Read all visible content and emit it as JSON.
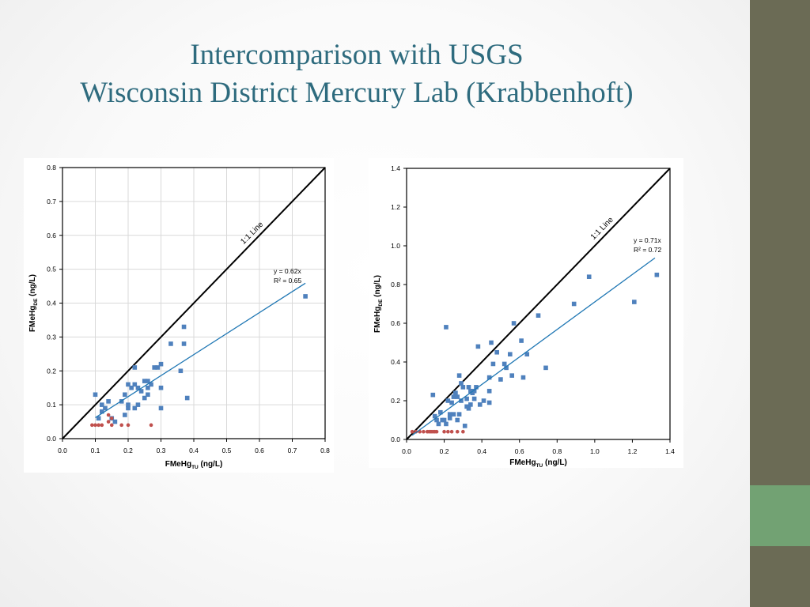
{
  "slide": {
    "title_line1": "Intercomparison with USGS",
    "title_line2": "Wisconsin District Mercury Lab (Krabbenhoft)",
    "colors": {
      "title": "#2e6b7e",
      "sidebar": "#6b6b55",
      "sidebar_accent": "#72a273",
      "series_blue": "#4f81bd",
      "series_red": "#c0504d",
      "trend_line": "#1f77b4",
      "one_to_one_line": "#000000"
    }
  },
  "chart_data": [
    {
      "type": "scatter",
      "xlabel": "FMeHg",
      "xlabel_sub": "TU",
      "xlabel_unit": " (ng/L)",
      "ylabel": "FMeHg",
      "ylabel_sub": "DE",
      "ylabel_unit": " (ng/L)",
      "xlim": [
        0,
        0.8
      ],
      "ylim": [
        0,
        0.8
      ],
      "xticks": [
        "0.0",
        "0.1",
        "0.2",
        "0.3",
        "0.4",
        "0.5",
        "0.6",
        "0.7",
        "0.8"
      ],
      "yticks": [
        "0.0",
        "0.1",
        "0.2",
        "0.3",
        "0.4",
        "0.5",
        "0.6",
        "0.7",
        "0.8"
      ],
      "grid": true,
      "one_to_one_label": "1:1 Line",
      "trend": {
        "slope": 0.62,
        "x_range": [
          0.1,
          0.74
        ],
        "equation": "y = 0.62x",
        "r2": "R² = 0.65"
      },
      "series": [
        {
          "marker": "square",
          "color": "#4f81bd",
          "points": [
            [
              0.1,
              0.13
            ],
            [
              0.11,
              0.06
            ],
            [
              0.12,
              0.1
            ],
            [
              0.12,
              0.08
            ],
            [
              0.13,
              0.09
            ],
            [
              0.14,
              0.11
            ],
            [
              0.15,
              0.06
            ],
            [
              0.16,
              0.05
            ],
            [
              0.18,
              0.11
            ],
            [
              0.19,
              0.07
            ],
            [
              0.19,
              0.13
            ],
            [
              0.2,
              0.16
            ],
            [
              0.2,
              0.09
            ],
            [
              0.2,
              0.1
            ],
            [
              0.21,
              0.15
            ],
            [
              0.22,
              0.16
            ],
            [
              0.22,
              0.21
            ],
            [
              0.22,
              0.09
            ],
            [
              0.23,
              0.1
            ],
            [
              0.23,
              0.15
            ],
            [
              0.24,
              0.14
            ],
            [
              0.25,
              0.12
            ],
            [
              0.25,
              0.17
            ],
            [
              0.26,
              0.13
            ],
            [
              0.26,
              0.15
            ],
            [
              0.26,
              0.17
            ],
            [
              0.27,
              0.16
            ],
            [
              0.28,
              0.21
            ],
            [
              0.29,
              0.21
            ],
            [
              0.3,
              0.22
            ],
            [
              0.3,
              0.15
            ],
            [
              0.3,
              0.09
            ],
            [
              0.33,
              0.28
            ],
            [
              0.36,
              0.2
            ],
            [
              0.37,
              0.28
            ],
            [
              0.37,
              0.33
            ],
            [
              0.38,
              0.12
            ],
            [
              0.74,
              0.42
            ]
          ]
        },
        {
          "marker": "circle",
          "color": "#c0504d",
          "points": [
            [
              0.09,
              0.04
            ],
            [
              0.1,
              0.04
            ],
            [
              0.11,
              0.04
            ],
            [
              0.12,
              0.04
            ],
            [
              0.14,
              0.05
            ],
            [
              0.14,
              0.07
            ],
            [
              0.15,
              0.06
            ],
            [
              0.15,
              0.04
            ],
            [
              0.18,
              0.04
            ],
            [
              0.2,
              0.04
            ],
            [
              0.27,
              0.04
            ]
          ]
        }
      ]
    },
    {
      "type": "scatter",
      "xlabel": "FMeHg",
      "xlabel_sub": "TU",
      "xlabel_unit": " (ng/L)",
      "ylabel": "FMeHg",
      "ylabel_sub": "DE",
      "ylabel_unit": " (ng/L)",
      "xlim": [
        0,
        1.4
      ],
      "ylim": [
        0,
        1.4
      ],
      "xticks": [
        "0.0",
        "0.2",
        "0.4",
        "0.6",
        "0.8",
        "1.0",
        "1.2",
        "1.4"
      ],
      "yticks": [
        "0.0",
        "0.2",
        "0.4",
        "0.6",
        "0.8",
        "1.0",
        "1.2",
        "1.4"
      ],
      "grid": false,
      "one_to_one_label": "1:1 Line",
      "trend": {
        "slope": 0.71,
        "x_range": [
          0.03,
          1.32
        ],
        "equation": "y = 0.71x",
        "r2": "R² = 0.72"
      },
      "series": [
        {
          "marker": "square",
          "color": "#4f81bd",
          "points": [
            [
              0.14,
              0.23
            ],
            [
              0.15,
              0.12
            ],
            [
              0.16,
              0.1
            ],
            [
              0.17,
              0.08
            ],
            [
              0.18,
              0.14
            ],
            [
              0.19,
              0.1
            ],
            [
              0.2,
              0.1
            ],
            [
              0.21,
              0.58
            ],
            [
              0.21,
              0.08
            ],
            [
              0.22,
              0.2
            ],
            [
              0.23,
              0.11
            ],
            [
              0.24,
              0.19
            ],
            [
              0.25,
              0.13
            ],
            [
              0.25,
              0.22
            ],
            [
              0.26,
              0.24
            ],
            [
              0.27,
              0.22
            ],
            [
              0.27,
              0.1
            ],
            [
              0.28,
              0.33
            ],
            [
              0.28,
              0.13
            ],
            [
              0.29,
              0.2
            ],
            [
              0.29,
              0.29
            ],
            [
              0.3,
              0.27
            ],
            [
              0.31,
              0.07
            ],
            [
              0.32,
              0.21
            ],
            [
              0.32,
              0.17
            ],
            [
              0.33,
              0.16
            ],
            [
              0.34,
              0.25
            ],
            [
              0.34,
              0.18
            ],
            [
              0.35,
              0.24
            ],
            [
              0.36,
              0.21
            ],
            [
              0.36,
              0.25
            ],
            [
              0.37,
              0.27
            ],
            [
              0.38,
              0.48
            ],
            [
              0.39,
              0.18
            ],
            [
              0.41,
              0.2
            ],
            [
              0.44,
              0.32
            ],
            [
              0.44,
              0.25
            ],
            [
              0.45,
              0.5
            ],
            [
              0.46,
              0.39
            ],
            [
              0.48,
              0.45
            ],
            [
              0.5,
              0.31
            ],
            [
              0.52,
              0.39
            ],
            [
              0.53,
              0.37
            ],
            [
              0.55,
              0.44
            ],
            [
              0.56,
              0.33
            ],
            [
              0.57,
              0.6
            ],
            [
              0.61,
              0.51
            ],
            [
              0.62,
              0.32
            ],
            [
              0.64,
              0.44
            ],
            [
              0.7,
              0.64
            ],
            [
              0.74,
              0.37
            ],
            [
              0.89,
              0.7
            ],
            [
              0.97,
              0.84
            ],
            [
              1.21,
              0.71
            ],
            [
              1.33,
              0.85
            ],
            [
              0.44,
              0.19
            ],
            [
              0.33,
              0.27
            ],
            [
              0.26,
              0.24
            ],
            [
              0.23,
              0.13
            ]
          ]
        },
        {
          "marker": "circle",
          "color": "#c0504d",
          "points": [
            [
              0.03,
              0.04
            ],
            [
              0.05,
              0.04
            ],
            [
              0.07,
              0.04
            ],
            [
              0.09,
              0.04
            ],
            [
              0.11,
              0.04
            ],
            [
              0.12,
              0.04
            ],
            [
              0.13,
              0.04
            ],
            [
              0.14,
              0.04
            ],
            [
              0.15,
              0.04
            ],
            [
              0.16,
              0.04
            ],
            [
              0.2,
              0.04
            ],
            [
              0.22,
              0.04
            ],
            [
              0.24,
              0.04
            ],
            [
              0.27,
              0.04
            ],
            [
              0.3,
              0.04
            ]
          ]
        }
      ]
    }
  ]
}
